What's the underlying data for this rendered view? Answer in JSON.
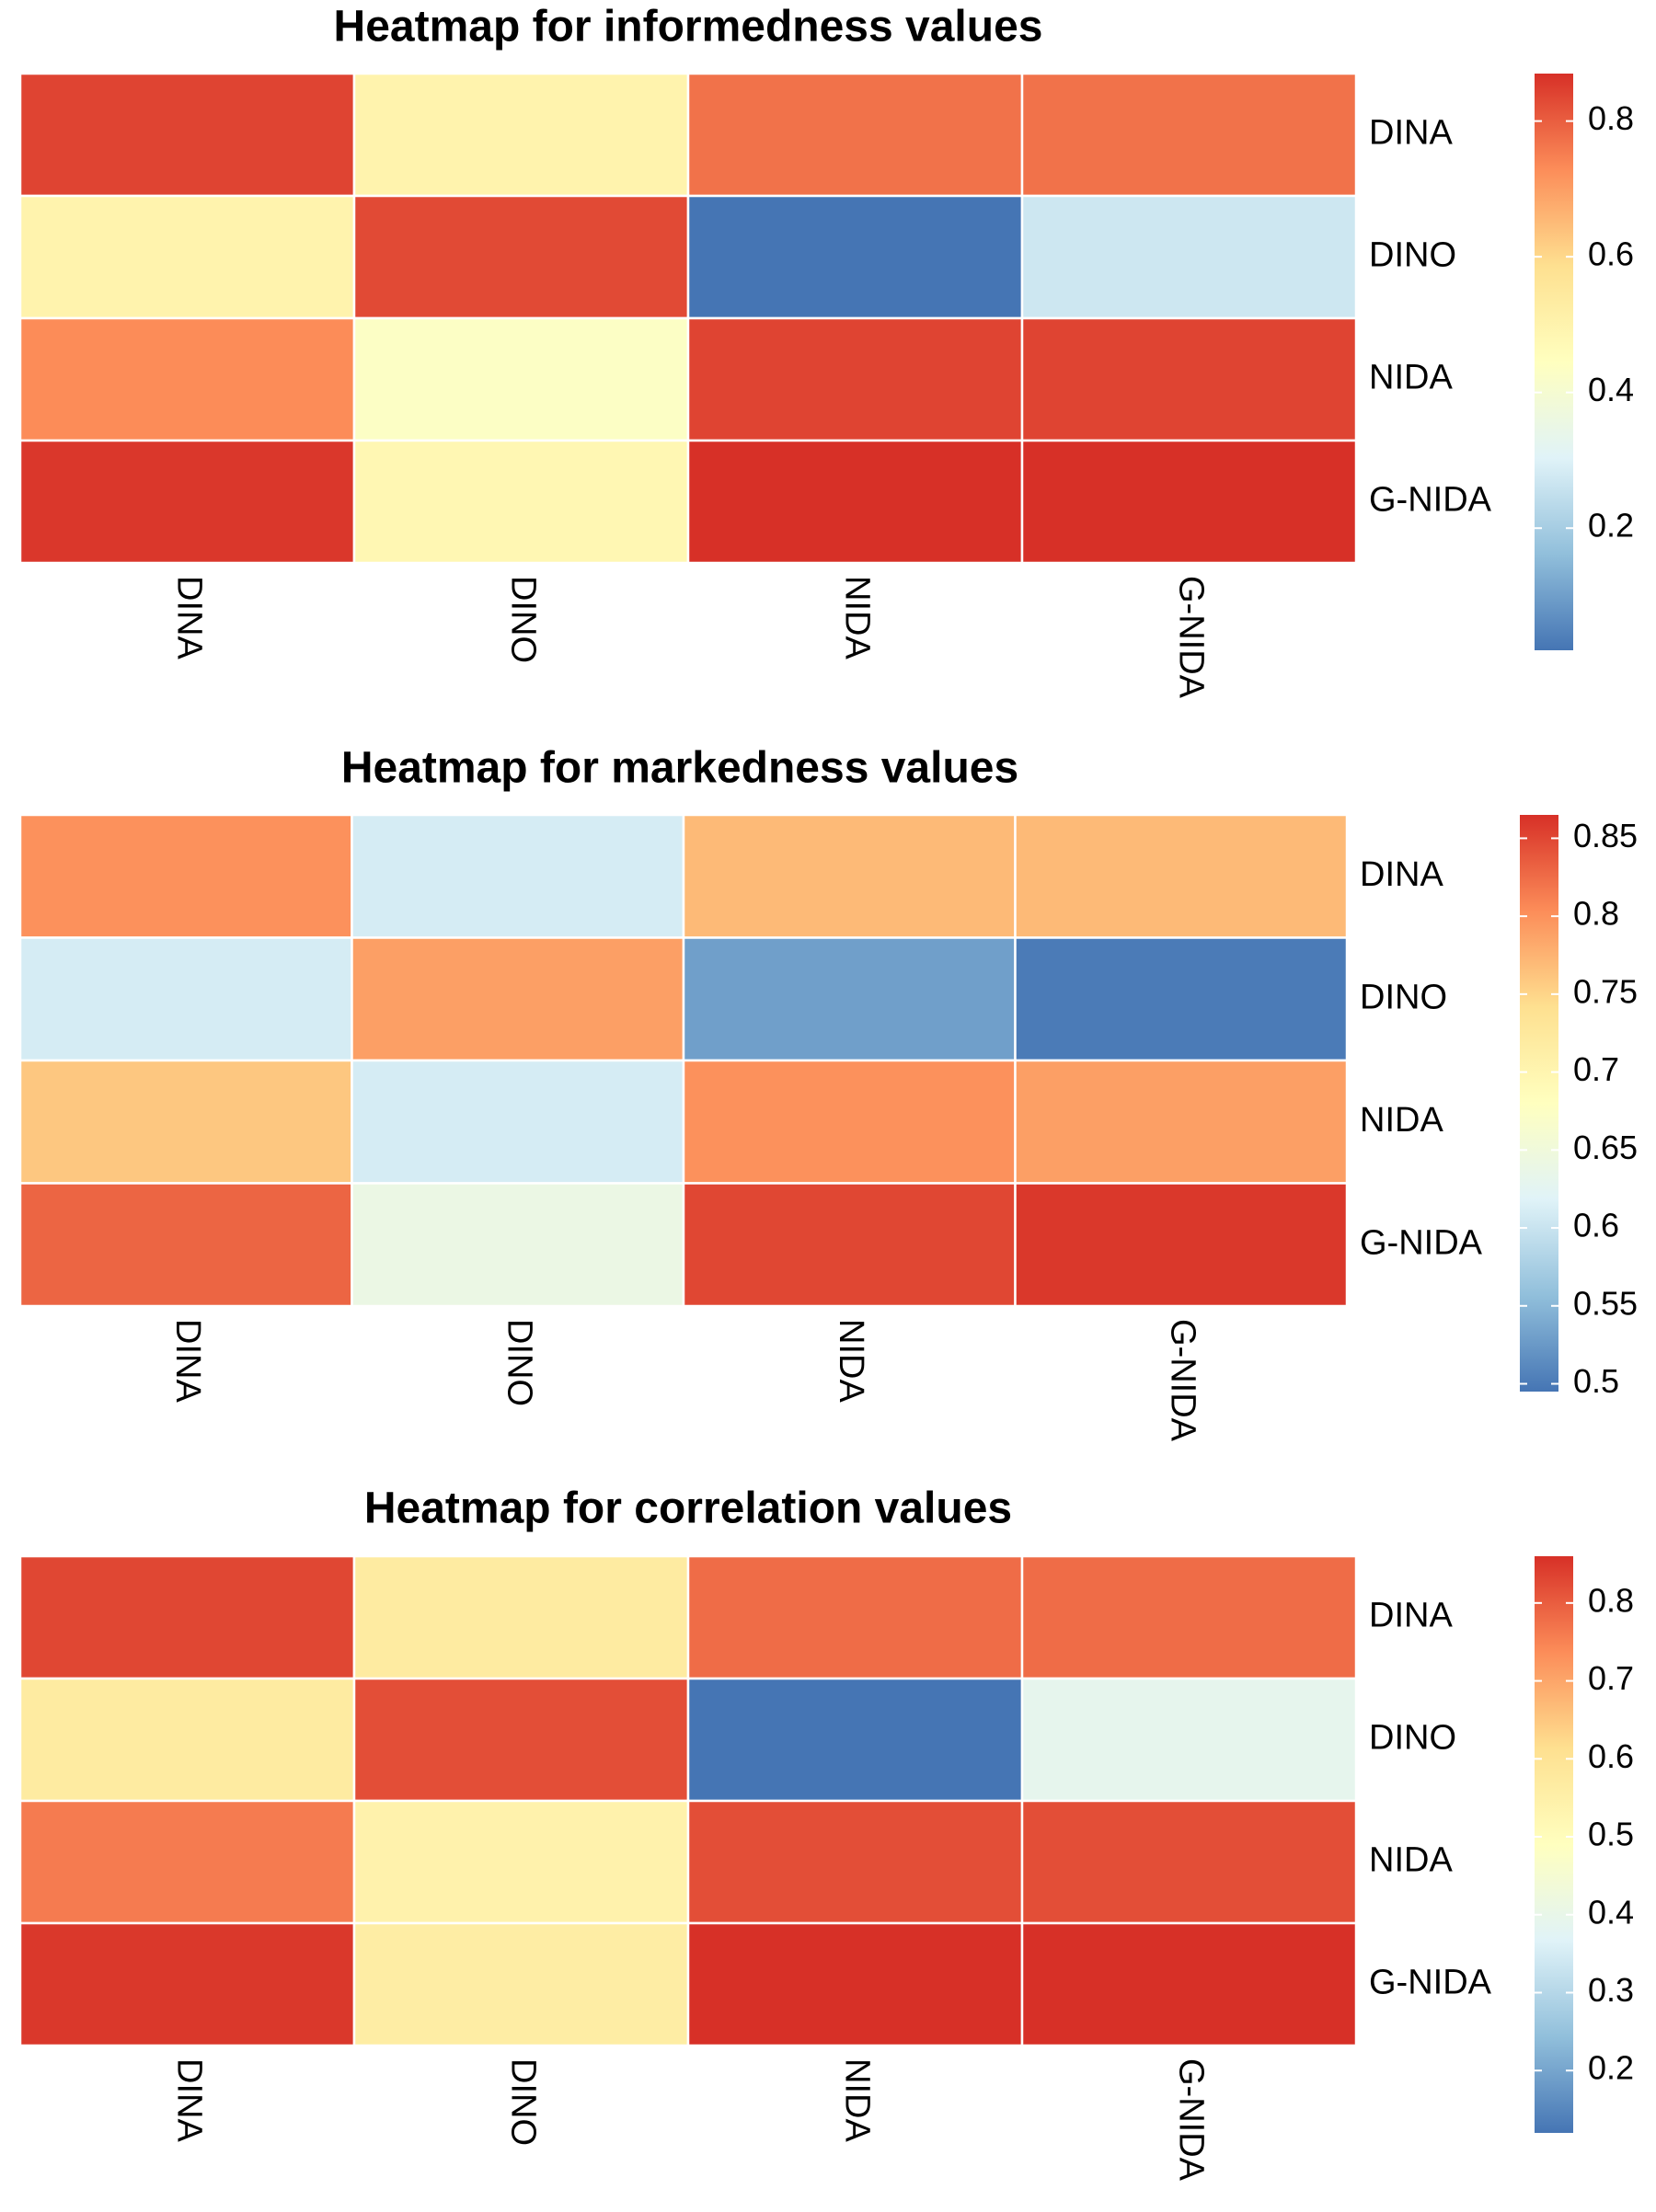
{
  "chart_data": [
    {
      "type": "heatmap",
      "title": "Heatmap for informedness values",
      "rows": [
        "DINA",
        "DINO",
        "NIDA",
        "G-NIDA"
      ],
      "columns": [
        "DINA",
        "DINO",
        "NIDA",
        "G-NIDA"
      ],
      "values": [
        [
          0.84,
          0.5,
          0.77,
          0.77
        ],
        [
          0.5,
          0.83,
          0.02,
          0.27
        ],
        [
          0.73,
          0.43,
          0.84,
          0.84
        ],
        [
          0.86,
          0.48,
          0.87,
          0.87
        ]
      ],
      "colorbar": {
        "min": 0.02,
        "max": 0.87,
        "ticks": [
          0.2,
          0.4,
          0.6,
          0.8
        ],
        "tick_labels": [
          "0.2",
          "0.4",
          "0.6",
          "0.8"
        ]
      },
      "legend_position": "right",
      "grid": false
    },
    {
      "type": "heatmap",
      "title": "Heatmap for markedness values",
      "rows": [
        "DINA",
        "DINO",
        "NIDA",
        "G-NIDA"
      ],
      "columns": [
        "DINA",
        "DINO",
        "NIDA",
        "G-NIDA"
      ],
      "values": [
        [
          0.8,
          0.61,
          0.77,
          0.77
        ],
        [
          0.61,
          0.79,
          0.53,
          0.5
        ],
        [
          0.76,
          0.61,
          0.8,
          0.79
        ],
        [
          0.83,
          0.64,
          0.85,
          0.86
        ]
      ],
      "colorbar": {
        "min": 0.495,
        "max": 0.865,
        "ticks": [
          0.5,
          0.55,
          0.6,
          0.65,
          0.7,
          0.75,
          0.8,
          0.85
        ],
        "tick_labels": [
          "0.5",
          "0.55",
          "0.6",
          "0.65",
          "0.7",
          "0.75",
          "0.8",
          "0.85"
        ]
      },
      "legend_position": "right",
      "grid": false
    },
    {
      "type": "heatmap",
      "title": "Heatmap for correlation values",
      "rows": [
        "DINA",
        "DINO",
        "NIDA",
        "G-NIDA"
      ],
      "columns": [
        "DINA",
        "DINO",
        "NIDA",
        "G-NIDA"
      ],
      "values": [
        [
          0.83,
          0.57,
          0.78,
          0.78
        ],
        [
          0.57,
          0.82,
          0.12,
          0.39
        ],
        [
          0.76,
          0.54,
          0.82,
          0.82
        ],
        [
          0.85,
          0.56,
          0.86,
          0.86
        ]
      ],
      "colorbar": {
        "min": 0.12,
        "max": 0.86,
        "ticks": [
          0.2,
          0.3,
          0.4,
          0.5,
          0.6,
          0.7,
          0.8
        ],
        "tick_labels": [
          "0.2",
          "0.3",
          "0.4",
          "0.5",
          "0.6",
          "0.7",
          "0.8"
        ]
      },
      "legend_position": "right",
      "grid": false
    }
  ],
  "colors": {
    "palette": [
      "#4575B4",
      "#91BFDB",
      "#E0F3F8",
      "#FFFFBF",
      "#FEE090",
      "#FC8D59",
      "#D73027"
    ],
    "cell_border": "#FFFFFF",
    "text": "#000000"
  }
}
